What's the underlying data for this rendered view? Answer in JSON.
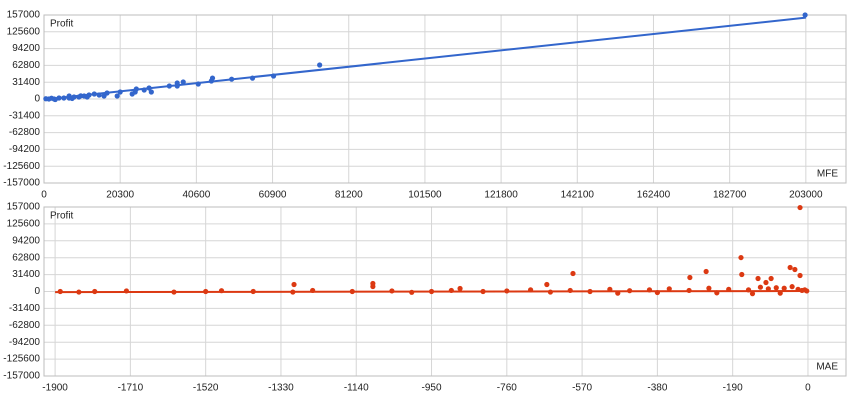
{
  "chart_data": [
    {
      "type": "scatter",
      "y_label": "Profit",
      "x_label": "MFE",
      "color": "#3366cc",
      "grid": true,
      "xlim": [
        0,
        213700
      ],
      "ylim": [
        -157000,
        157000
      ],
      "xticks": [
        0,
        20300,
        40600,
        60900,
        81200,
        101500,
        121800,
        142100,
        162400,
        182700,
        203000
      ],
      "yticks": [
        157000,
        125600,
        94200,
        62800,
        31400,
        0,
        -31400,
        -62800,
        -94200,
        -125600,
        -157000
      ],
      "x": [
        202800,
        73450,
        61170,
        55560,
        50000,
        44900,
        44600,
        41100,
        37100,
        35500,
        35500,
        33400,
        28600,
        28000,
        26700,
        24600,
        24300,
        23500,
        20300,
        19500,
        16800,
        16000,
        14700,
        13400,
        12000,
        10700,
        9300,
        8000,
        6700,
        5300,
        4000,
        2700,
        1300,
        500,
        11500,
        6700,
        3000,
        7500,
        9800,
        2000
      ],
      "y": [
        157000,
        63500,
        43000,
        39000,
        37000,
        39000,
        33600,
        28000,
        31800,
        30000,
        24300,
        24300,
        13100,
        20600,
        16800,
        18700,
        13100,
        9300,
        13100,
        5600,
        11200,
        5600,
        7500,
        9300,
        7500,
        5600,
        3700,
        3700,
        1900,
        1900,
        1900,
        0,
        0,
        500,
        3700,
        5600,
        -1000,
        1000,
        6000,
        1500
      ],
      "trend": {
        "x": [
          0,
          203000
        ],
        "y": [
          -900,
          152000
        ]
      }
    },
    {
      "type": "scatter",
      "y_label": "Profit",
      "x_label": "MAE",
      "color": "#dc3912",
      "grid": true,
      "xlim": [
        -1928,
        96
      ],
      "ylim": [
        -157000,
        157000
      ],
      "xticks": [
        -1900,
        -1710,
        -1520,
        -1330,
        -1140,
        -950,
        -760,
        -570,
        -380,
        -190,
        0
      ],
      "yticks": [
        157000,
        125600,
        94200,
        62800,
        31400,
        0,
        -31400,
        -62800,
        -94200,
        -125600,
        -157000
      ],
      "x": [
        -20,
        -169,
        -167,
        -33,
        -45,
        -20,
        -93,
        -126,
        -106,
        -257,
        -298,
        -593,
        -659,
        -878,
        -1098,
        -1098,
        -1297,
        -1887,
        -1840,
        -1800,
        -1720,
        -1600,
        -1520,
        -1480,
        -1400,
        -1300,
        -1250,
        -1150,
        -1050,
        -1000,
        -950,
        -900,
        -820,
        -760,
        -700,
        -650,
        -600,
        -550,
        -500,
        -450,
        -400,
        -350,
        -300,
        -250,
        -200,
        -150,
        -120,
        -100,
        -80,
        -60,
        -40,
        -25,
        -15,
        -8,
        -3,
        -480,
        -380,
        -230,
        -140,
        -70
      ],
      "y": [
        156000,
        63000,
        31600,
        40900,
        44600,
        29700,
        24200,
        24200,
        16700,
        37200,
        26000,
        33400,
        13000,
        5600,
        14900,
        9300,
        13000,
        0,
        -1000,
        0,
        1000,
        -1000,
        0,
        1500,
        0,
        -1000,
        2000,
        0,
        1000,
        -1500,
        0,
        2000,
        0,
        1000,
        3000,
        -1000,
        2000,
        0,
        4000,
        1500,
        3000,
        5000,
        2000,
        6000,
        4000,
        3000,
        8000,
        5000,
        7000,
        6000,
        9000,
        4000,
        2000,
        3000,
        1000,
        -3000,
        -2000,
        -2500,
        -4000,
        -3000
      ],
      "trend": {
        "x": [
          -1900,
          0
        ],
        "y": [
          -1200,
          900
        ]
      }
    }
  ]
}
